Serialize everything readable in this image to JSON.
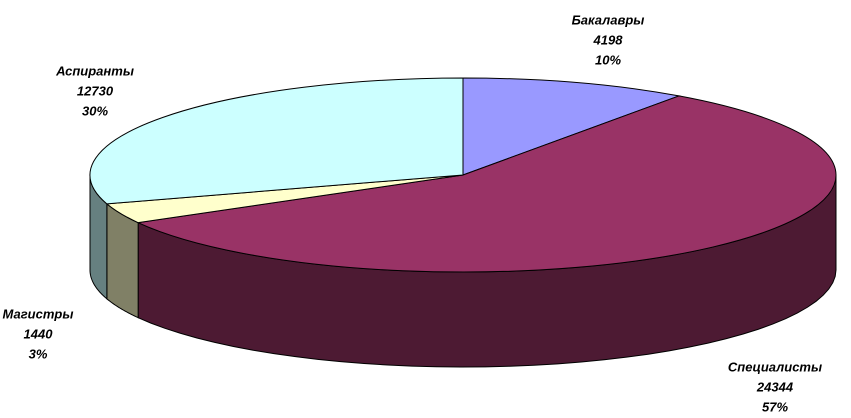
{
  "chart_data": {
    "type": "pie3d",
    "categories": [
      "Бакалавры",
      "Специалисты",
      "Магистры",
      "Аспиранты"
    ],
    "values": [
      4198,
      24344,
      1440,
      12730
    ],
    "percents": [
      10,
      57,
      3,
      30
    ],
    "percent_labels": [
      "10%",
      "57%",
      "3%",
      "30%"
    ],
    "colors": [
      "#9999ff",
      "#993366",
      "#ffffcc",
      "#ccffff"
    ]
  }
}
